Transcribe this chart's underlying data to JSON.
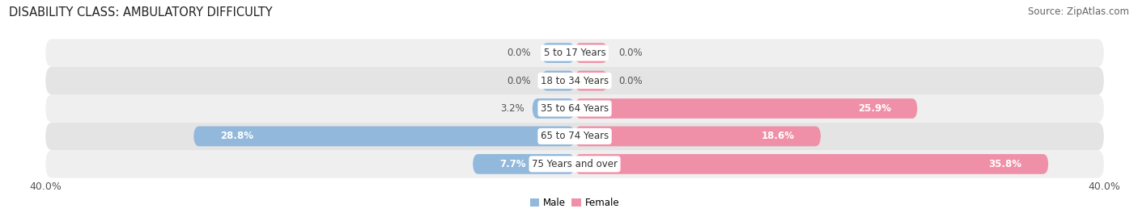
{
  "title": "DISABILITY CLASS: AMBULATORY DIFFICULTY",
  "source": "Source: ZipAtlas.com",
  "categories": [
    "5 to 17 Years",
    "18 to 34 Years",
    "35 to 64 Years",
    "65 to 74 Years",
    "75 Years and over"
  ],
  "male_values": [
    0.0,
    0.0,
    3.2,
    28.8,
    7.7
  ],
  "female_values": [
    0.0,
    0.0,
    25.9,
    18.6,
    35.8
  ],
  "male_color": "#92b8dc",
  "female_color": "#f090a8",
  "row_bg_colors": [
    "#efefef",
    "#e4e4e4"
  ],
  "axis_max": 40.0,
  "title_fontsize": 10.5,
  "source_fontsize": 8.5,
  "label_fontsize": 8.5,
  "category_fontsize": 8.5,
  "tick_fontsize": 9,
  "bar_height": 0.72,
  "small_bar_width": 2.5
}
